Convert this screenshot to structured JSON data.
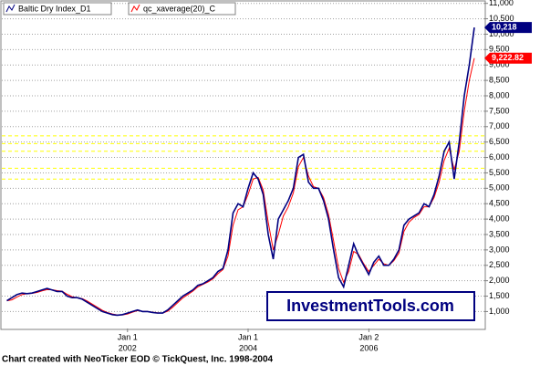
{
  "chart_data": {
    "type": "line",
    "x": [
      "2000-01",
      "2000-02",
      "2000-03",
      "2000-04",
      "2000-05",
      "2000-06",
      "2000-07",
      "2000-08",
      "2000-09",
      "2000-10",
      "2000-11",
      "2000-12",
      "2001-01",
      "2001-02",
      "2001-03",
      "2001-04",
      "2001-05",
      "2001-06",
      "2001-07",
      "2001-08",
      "2001-09",
      "2001-10",
      "2001-11",
      "2001-12",
      "2002-01",
      "2002-02",
      "2002-03",
      "2002-04",
      "2002-05",
      "2002-06",
      "2002-07",
      "2002-08",
      "2002-09",
      "2002-10",
      "2002-11",
      "2002-12",
      "2003-01",
      "2003-02",
      "2003-03",
      "2003-04",
      "2003-05",
      "2003-06",
      "2003-07",
      "2003-08",
      "2003-09",
      "2003-10",
      "2003-11",
      "2003-12",
      "2004-01",
      "2004-02",
      "2004-03",
      "2004-04",
      "2004-05",
      "2004-06",
      "2004-07",
      "2004-08",
      "2004-09",
      "2004-10",
      "2004-11",
      "2004-12",
      "2005-01",
      "2005-02",
      "2005-03",
      "2005-04",
      "2005-05",
      "2005-06",
      "2005-07",
      "2005-08",
      "2005-09",
      "2005-10",
      "2005-11",
      "2005-12",
      "2006-01",
      "2006-02",
      "2006-03",
      "2006-04",
      "2006-05",
      "2006-06",
      "2006-07",
      "2006-08",
      "2006-09",
      "2006-10",
      "2006-11",
      "2006-12",
      "2007-01",
      "2007-02",
      "2007-03",
      "2007-04",
      "2007-05",
      "2007-06",
      "2007-07",
      "2007-08",
      "2007-09",
      "2007-10"
    ],
    "series": [
      {
        "name": "Baltic Dry Index_D1",
        "color": "#000080",
        "values": [
          1350,
          1450,
          1550,
          1600,
          1580,
          1600,
          1650,
          1700,
          1750,
          1700,
          1650,
          1650,
          1500,
          1450,
          1450,
          1400,
          1300,
          1200,
          1100,
          1000,
          950,
          900,
          880,
          900,
          950,
          1000,
          1050,
          1000,
          1000,
          970,
          950,
          950,
          1050,
          1200,
          1350,
          1500,
          1600,
          1700,
          1850,
          1900,
          2000,
          2100,
          2300,
          2400,
          3000,
          4200,
          4500,
          4400,
          5000,
          5500,
          5300,
          4800,
          3500,
          2700,
          4000,
          4300,
          4600,
          5000,
          6000,
          6100,
          5200,
          5000,
          5000,
          4600,
          4000,
          3000,
          2100,
          1800,
          2500,
          3200,
          2800,
          2500,
          2200,
          2600,
          2800,
          2500,
          2500,
          2700,
          3000,
          3800,
          4000,
          4100,
          4200,
          4500,
          4400,
          4800,
          5400,
          6200,
          6500,
          5300,
          6500,
          8000,
          9000,
          10218
        ],
        "last_label": "10,218"
      },
      {
        "name": "qc_xaverage(20)_C",
        "color": "#ff0000",
        "values": [
          1350,
          1380,
          1470,
          1550,
          1580,
          1590,
          1620,
          1670,
          1710,
          1710,
          1680,
          1660,
          1560,
          1480,
          1450,
          1420,
          1340,
          1240,
          1140,
          1040,
          970,
          920,
          890,
          890,
          920,
          980,
          1030,
          1010,
          1000,
          980,
          960,
          950,
          1010,
          1140,
          1290,
          1440,
          1550,
          1660,
          1800,
          1880,
          1960,
          2060,
          2230,
          2360,
          2800,
          3800,
          4300,
          4400,
          4800,
          5300,
          5350,
          4950,
          3900,
          3000,
          3500,
          4100,
          4400,
          4850,
          5700,
          6000,
          5400,
          5050,
          5000,
          4700,
          4150,
          3300,
          2400,
          1950,
          2300,
          2950,
          2850,
          2550,
          2300,
          2500,
          2700,
          2550,
          2500,
          2650,
          2900,
          3600,
          3900,
          4050,
          4150,
          4400,
          4400,
          4700,
          5200,
          5900,
          6300,
          5600,
          6200,
          7500,
          8500,
          9222.82
        ],
        "last_label": "9,222.82"
      }
    ],
    "xlim": [
      "1999-12",
      "2007-12"
    ],
    "xticks": [
      {
        "value": "2002-01-01",
        "label": [
          "Jan 1",
          "2002"
        ]
      },
      {
        "value": "2004-01-01",
        "label": [
          "Jan 1",
          "2004"
        ]
      },
      {
        "value": "2006-01-02",
        "label": [
          "Jan 2",
          "2006"
        ]
      }
    ],
    "ylim": [
      450,
      11050
    ],
    "yticks": [
      {
        "value": 1000,
        "label": "1,000"
      },
      {
        "value": 1500,
        "label": "1,500"
      },
      {
        "value": 2000,
        "label": "2,000"
      },
      {
        "value": 2500,
        "label": "2,500"
      },
      {
        "value": 3000,
        "label": "3,000"
      },
      {
        "value": 3500,
        "label": "3,500"
      },
      {
        "value": 4000,
        "label": "4,000"
      },
      {
        "value": 4500,
        "label": "4,500"
      },
      {
        "value": 5000,
        "label": "5,000"
      },
      {
        "value": 5500,
        "label": "5,500"
      },
      {
        "value": 6000,
        "label": "6,000"
      },
      {
        "value": 6500,
        "label": "6,500"
      },
      {
        "value": 7000,
        "label": "7,000"
      },
      {
        "value": 7500,
        "label": "7,500"
      },
      {
        "value": 8000,
        "label": "8,000"
      },
      {
        "value": 8500,
        "label": "8,500"
      },
      {
        "value": 9000,
        "label": "9,000"
      },
      {
        "value": 9500,
        "label": "9,500"
      },
      {
        "value": 10000,
        "label": "10,000"
      },
      {
        "value": 10500,
        "label": "10,500"
      },
      {
        "value": 11000,
        "label": "11,000"
      }
    ],
    "grid": true,
    "reference_lines": {
      "color": "#ffff00",
      "values": [
        6700,
        6450,
        6200,
        5650,
        5300
      ]
    },
    "watermark": "InvestmentTools.com",
    "footer": "Chart created with NeoTicker EOD © TickQuest, Inc. 1998-2004"
  }
}
